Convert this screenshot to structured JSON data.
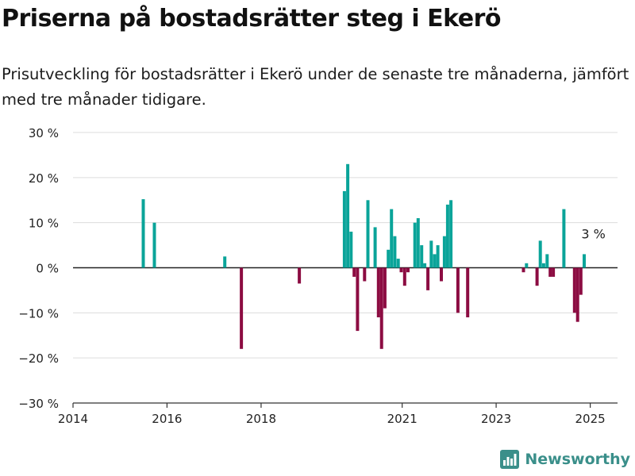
{
  "title": "Priserna på bostadsrätter steg i Ekerö",
  "subtitle": "Prisutveckling för bostadsrätter i Ekerö under de senaste tre månaderna, jämfört med tre månader tidigare.",
  "brand": {
    "name": "Newsworthy",
    "color": "#3a8f8a",
    "icon": "bar-chart-logo-icon"
  },
  "colors": {
    "positive": "#0aa499",
    "negative": "#8c0c42",
    "grid": "#dcdcdc",
    "axis": "#333333",
    "zero_line": "#222222"
  },
  "chart_data": {
    "type": "bar",
    "x_axis": {
      "type": "date",
      "range": [
        "2014-01-01",
        "2025-08-01"
      ],
      "tick_labels": [
        "2014",
        "2016",
        "2018",
        "2021",
        "2023",
        "2025"
      ],
      "tick_dates": [
        "2014-01-01",
        "2016-01-01",
        "2018-01-01",
        "2021-01-01",
        "2023-01-01",
        "2025-01-01"
      ]
    },
    "y_axis": {
      "range": [
        -30,
        30
      ],
      "ticks": [
        30,
        20,
        10,
        0,
        -10,
        -20,
        -30
      ],
      "tick_labels": [
        "30 %",
        "20 %",
        "10 %",
        "0 %",
        "−10 %",
        "−20 %",
        "−30 %"
      ],
      "unit": "%"
    },
    "grid": true,
    "annotation": {
      "text": "3 %",
      "date": "2025-01-01",
      "value": 3
    },
    "series": [
      {
        "points": [
          {
            "date": "2015-07-01",
            "value": 15.2
          },
          {
            "date": "2015-09-25",
            "value": 10
          },
          {
            "date": "2017-03-25",
            "value": 2.5
          },
          {
            "date": "2017-08-01",
            "value": -18
          },
          {
            "date": "2018-10-25",
            "value": -3.5
          },
          {
            "date": "2019-10-10",
            "value": 17
          },
          {
            "date": "2019-11-05",
            "value": 23
          },
          {
            "date": "2019-12-01",
            "value": 8
          },
          {
            "date": "2019-12-25",
            "value": -2
          },
          {
            "date": "2020-01-20",
            "value": -14
          },
          {
            "date": "2020-03-15",
            "value": -3
          },
          {
            "date": "2020-04-10",
            "value": 15
          },
          {
            "date": "2020-06-05",
            "value": 9
          },
          {
            "date": "2020-07-01",
            "value": -11
          },
          {
            "date": "2020-07-25",
            "value": -18
          },
          {
            "date": "2020-08-20",
            "value": -9
          },
          {
            "date": "2020-09-15",
            "value": 4
          },
          {
            "date": "2020-10-10",
            "value": 13
          },
          {
            "date": "2020-11-05",
            "value": 7
          },
          {
            "date": "2020-12-01",
            "value": 2
          },
          {
            "date": "2020-12-25",
            "value": -1
          },
          {
            "date": "2021-01-20",
            "value": -4
          },
          {
            "date": "2021-02-15",
            "value": -1
          },
          {
            "date": "2021-04-10",
            "value": 10
          },
          {
            "date": "2021-05-05",
            "value": 11
          },
          {
            "date": "2021-06-01",
            "value": 5
          },
          {
            "date": "2021-06-25",
            "value": 1
          },
          {
            "date": "2021-07-20",
            "value": -5
          },
          {
            "date": "2021-08-15",
            "value": 6
          },
          {
            "date": "2021-09-10",
            "value": 3
          },
          {
            "date": "2021-10-05",
            "value": 5
          },
          {
            "date": "2021-11-01",
            "value": -3
          },
          {
            "date": "2021-11-25",
            "value": 7
          },
          {
            "date": "2021-12-20",
            "value": 14
          },
          {
            "date": "2022-01-15",
            "value": 15
          },
          {
            "date": "2022-03-10",
            "value": -10
          },
          {
            "date": "2022-05-25",
            "value": -11
          },
          {
            "date": "2023-08-01",
            "value": -1
          },
          {
            "date": "2023-08-25",
            "value": 1
          },
          {
            "date": "2023-11-15",
            "value": -4
          },
          {
            "date": "2023-12-10",
            "value": 6
          },
          {
            "date": "2024-01-05",
            "value": 1
          },
          {
            "date": "2024-02-01",
            "value": 3
          },
          {
            "date": "2024-02-25",
            "value": -2
          },
          {
            "date": "2024-03-20",
            "value": -2
          },
          {
            "date": "2024-06-10",
            "value": 13
          },
          {
            "date": "2024-09-01",
            "value": -10
          },
          {
            "date": "2024-09-25",
            "value": -12
          },
          {
            "date": "2024-10-20",
            "value": -6
          },
          {
            "date": "2024-11-15",
            "value": 3
          }
        ]
      }
    ]
  }
}
